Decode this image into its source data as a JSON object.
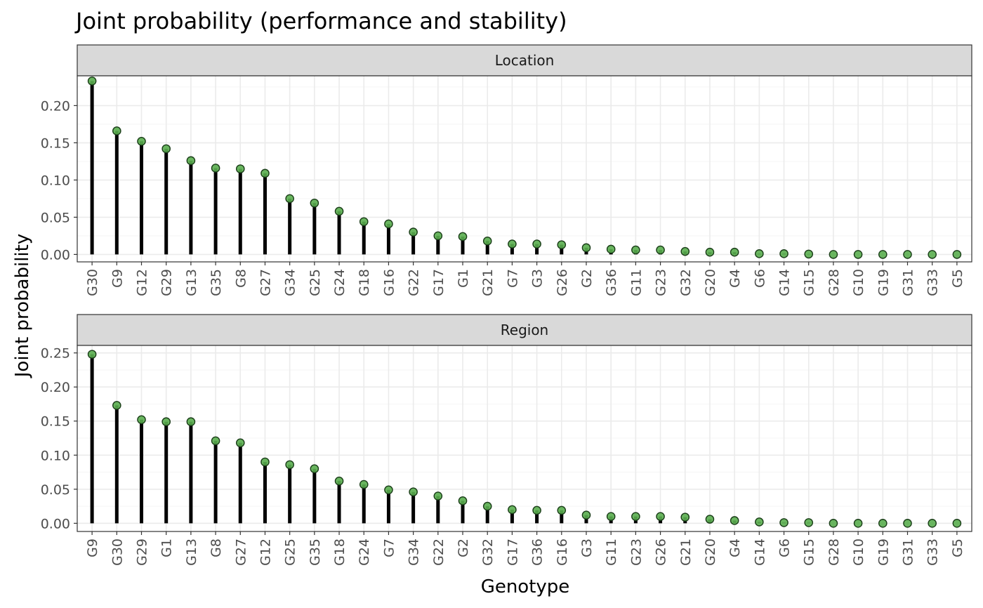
{
  "chart_data": {
    "type": "lollipop",
    "title": "Joint probability (performance and stability)",
    "xlabel": "Genotype",
    "ylabel": "Joint probability",
    "colors": {
      "point_fill": "#5aae4f",
      "point_stroke": "#1a3d18",
      "segment": "#000000",
      "strip_fill": "#d9d9d9",
      "grid_major": "#ebebeb",
      "grid_minor": "#f5f5f5"
    },
    "grid": true,
    "panels": [
      {
        "label": "Location",
        "ylim": [
          -0.01,
          0.24
        ],
        "yticks": [
          "0.00",
          "0.05",
          "0.10",
          "0.15",
          "0.20"
        ],
        "categories": [
          "G30",
          "G9",
          "G12",
          "G29",
          "G13",
          "G35",
          "G8",
          "G27",
          "G34",
          "G25",
          "G24",
          "G18",
          "G16",
          "G22",
          "G17",
          "G1",
          "G21",
          "G7",
          "G3",
          "G26",
          "G2",
          "G36",
          "G11",
          "G23",
          "G32",
          "G20",
          "G4",
          "G6",
          "G14",
          "G15",
          "G28",
          "G10",
          "G19",
          "G31",
          "G33",
          "G5"
        ],
        "values": [
          0.233,
          0.166,
          0.152,
          0.142,
          0.126,
          0.116,
          0.115,
          0.109,
          0.075,
          0.069,
          0.058,
          0.044,
          0.041,
          0.03,
          0.025,
          0.024,
          0.018,
          0.014,
          0.014,
          0.013,
          0.009,
          0.007,
          0.006,
          0.006,
          0.004,
          0.003,
          0.003,
          0.001,
          0.001,
          0.0005,
          0.0,
          0.0,
          0.0,
          0.0,
          0.0,
          0.0
        ]
      },
      {
        "label": "Region",
        "ylim": [
          -0.012,
          0.261
        ],
        "yticks": [
          "0.00",
          "0.05",
          "0.10",
          "0.15",
          "0.20",
          "0.25"
        ],
        "categories": [
          "G9",
          "G30",
          "G29",
          "G1",
          "G13",
          "G8",
          "G27",
          "G12",
          "G25",
          "G35",
          "G18",
          "G24",
          "G7",
          "G34",
          "G22",
          "G2",
          "G32",
          "G17",
          "G36",
          "G16",
          "G3",
          "G11",
          "G23",
          "G26",
          "G21",
          "G20",
          "G4",
          "G14",
          "G6",
          "G15",
          "G28",
          "G10",
          "G19",
          "G31",
          "G33",
          "G5"
        ],
        "values": [
          0.248,
          0.173,
          0.152,
          0.149,
          0.149,
          0.121,
          0.118,
          0.09,
          0.086,
          0.08,
          0.062,
          0.057,
          0.049,
          0.046,
          0.04,
          0.033,
          0.025,
          0.02,
          0.019,
          0.019,
          0.012,
          0.01,
          0.01,
          0.01,
          0.009,
          0.006,
          0.004,
          0.002,
          0.001,
          0.001,
          0.0,
          0.0,
          0.0,
          0.0,
          0.0,
          0.0
        ]
      }
    ]
  }
}
